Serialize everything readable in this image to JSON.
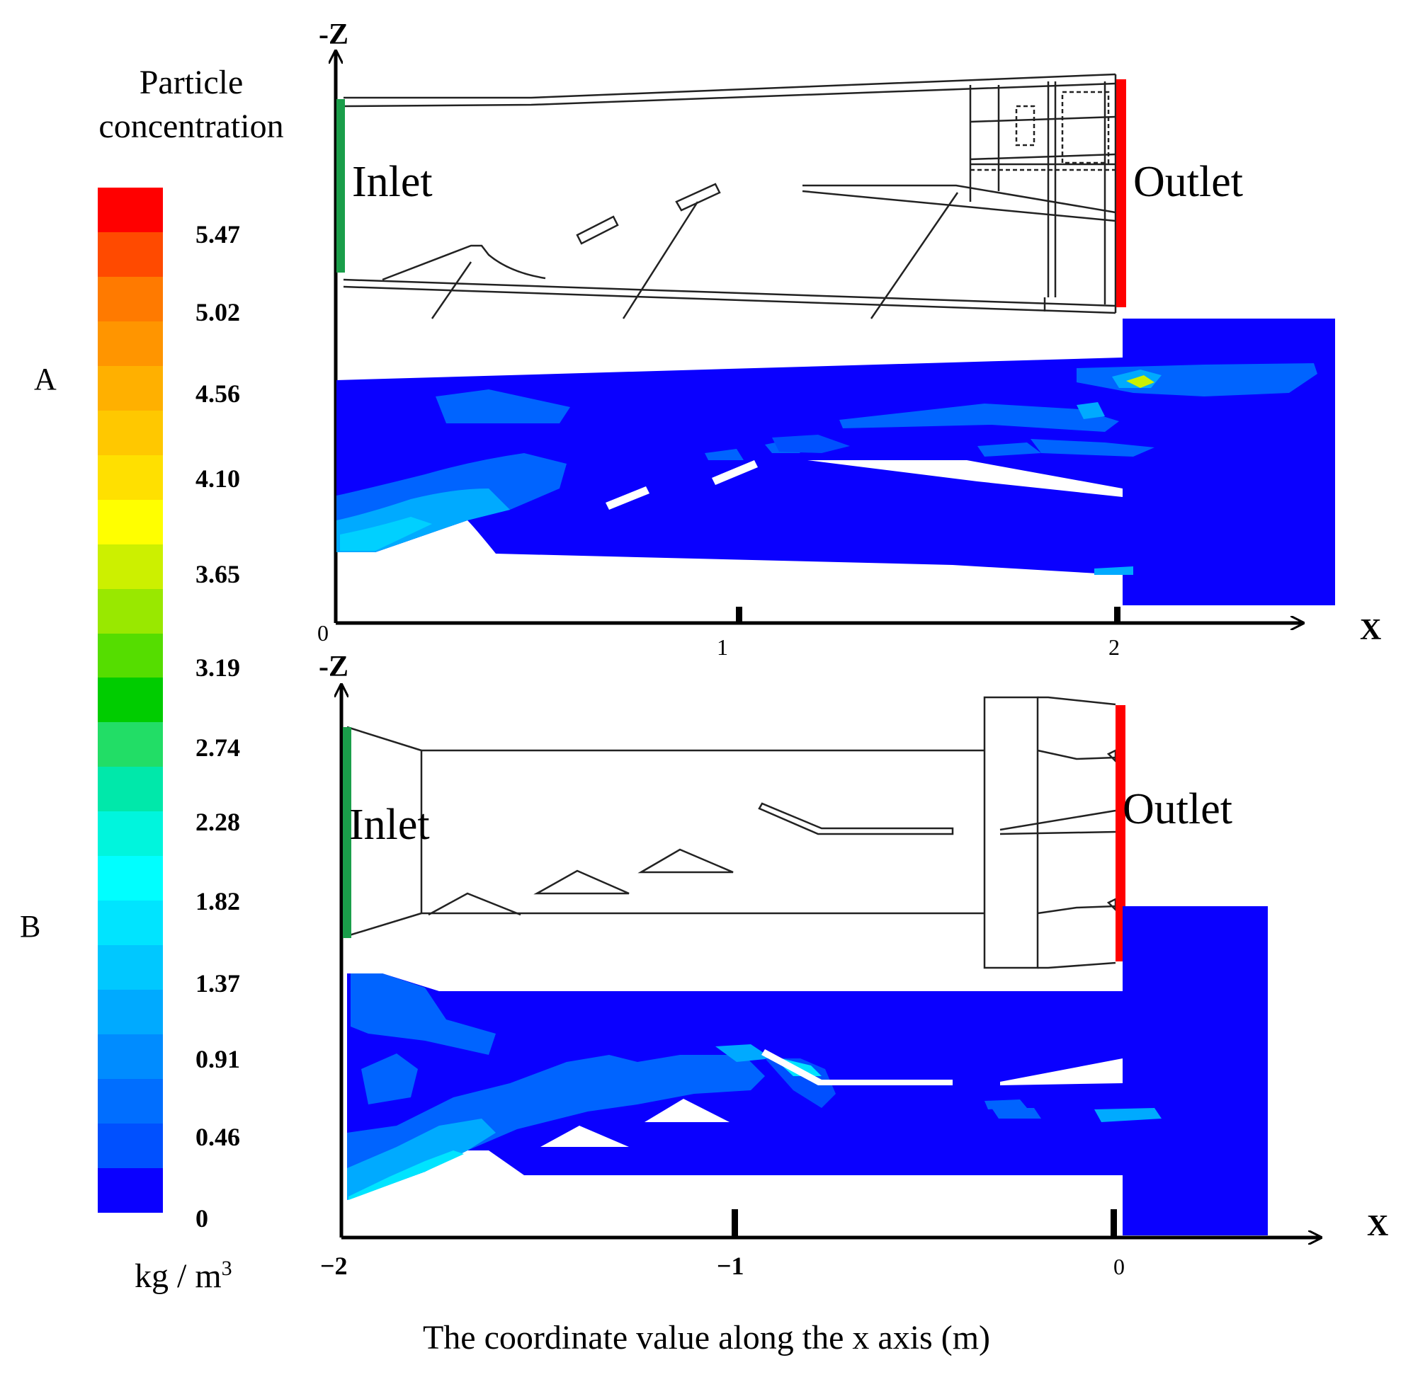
{
  "legend": {
    "title_line1": "Particle",
    "title_line2": "concentration",
    "unit": "kg / m",
    "unit_sup": "3",
    "ticks": [
      "5.47",
      "5.02",
      "4.56",
      "4.10",
      "3.65",
      "3.19",
      "2.74",
      "2.28",
      "1.82",
      "1.37",
      "0.91",
      "0.46",
      "0"
    ],
    "colors": [
      "#ff0000",
      "#ff4a00",
      "#ff7a00",
      "#ff9500",
      "#ffb000",
      "#ffc800",
      "#ffe000",
      "#ffff00",
      "#ccf000",
      "#99e800",
      "#55dd00",
      "#00cc00",
      "#22dd66",
      "#00e8aa",
      "#00f5dd",
      "#00ffff",
      "#00e4ff",
      "#00c8ff",
      "#00aaff",
      "#008cff",
      "#006eff",
      "#0050ff",
      "#0a00ff"
    ]
  },
  "panels": {
    "A": {
      "label": "A",
      "z_axis": "-Z",
      "x_axis": "X",
      "inlet": "Inlet",
      "outlet": "Outlet",
      "x_ticks": [
        "0",
        "1",
        "2"
      ]
    },
    "B": {
      "label": "B",
      "z_axis": "-Z",
      "x_axis": "X",
      "inlet": "Inlet",
      "outlet": "Outlet",
      "x_ticks": [
        "−2",
        "−1",
        "0"
      ]
    }
  },
  "x_caption": "The coordinate value along the x axis (m)",
  "style": {
    "inlet_color": "#1a9e4a",
    "outlet_color": "#ff0000",
    "field_blue": "#0a00ff"
  }
}
